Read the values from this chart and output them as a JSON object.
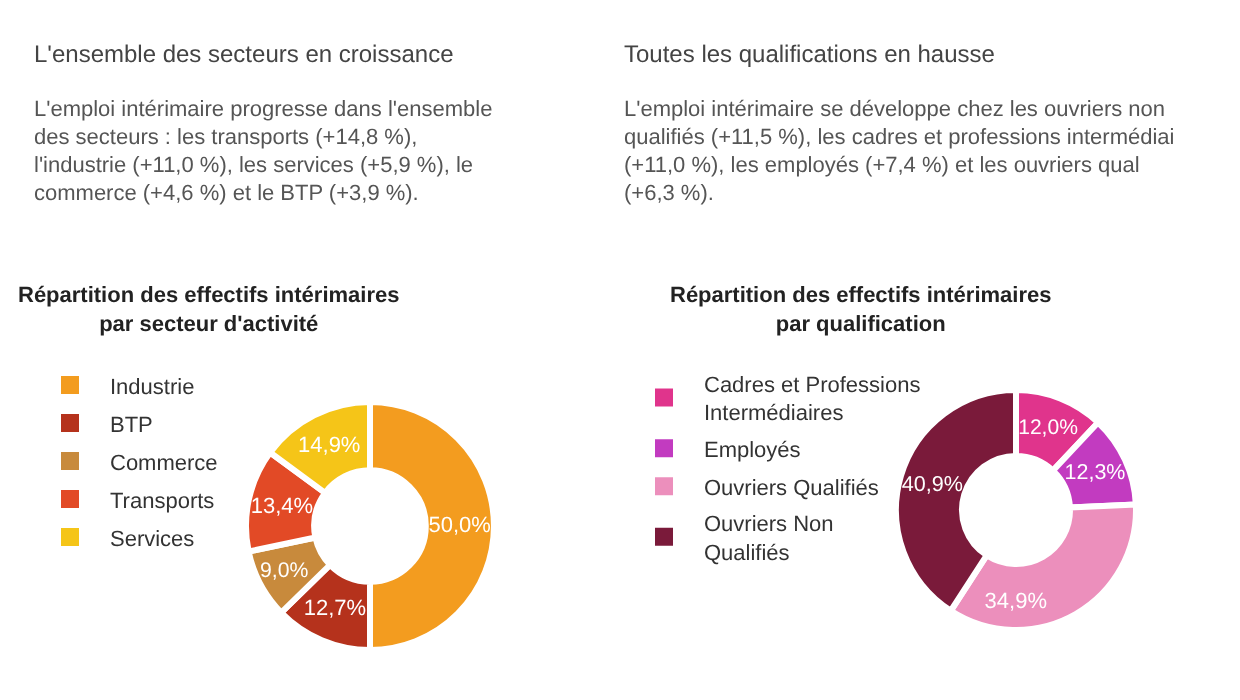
{
  "chart_data": [
    {
      "type": "donut",
      "title": "Répartition des effectifs intérimaires\npar secteur d'activité",
      "categories": [
        "Industrie",
        "BTP",
        "Commerce",
        "Transports",
        "Services"
      ],
      "values": [
        50.0,
        12.7,
        9.0,
        13.4,
        14.9
      ],
      "value_labels": [
        "50,0%",
        "12,7%",
        "9,0%",
        "13,4%",
        "14,9%"
      ],
      "colors": [
        "#f39c1f",
        "#b5321c",
        "#c88a3c",
        "#e24a26",
        "#f5c518"
      ],
      "legend": "left",
      "annotations": [
        "L'ensemble des secteurs en croissance",
        "L'emploi intérimaire progresse dans l'ensemble",
        "des secteurs : les transports (+14,8 %),",
        "l'industrie (+11,0 %), les services (+5,9 %), le",
        "commerce (+4,6 %) et le BTP (+3,9 %)."
      ]
    },
    {
      "type": "donut",
      "title": "Répartition des effectifs intérimaires\npar qualification",
      "categories": [
        "Cadres et Professions Intermédiaires",
        "Employés",
        "Ouvriers Qualifiés",
        "Ouvriers Non Qualifiés"
      ],
      "values": [
        12.0,
        12.3,
        34.9,
        40.9
      ],
      "value_labels": [
        "12,0%",
        "12,3%",
        "34,9%",
        "40,9%"
      ],
      "colors": [
        "#e0348c",
        "#c23bc0",
        "#ec8fbc",
        "#7a1a3a"
      ],
      "legend": "left",
      "annotations": [
        "Toutes les qualifications en hausse",
        "L'emploi intérimaire se développe chez les ouvriers non",
        "qualifiés (+11,5 %), les cadres et professions intermédiai",
        "(+11,0 %), les employés (+7,4 %) et les ouvriers qual",
        "(+6,3 %)."
      ]
    }
  ]
}
